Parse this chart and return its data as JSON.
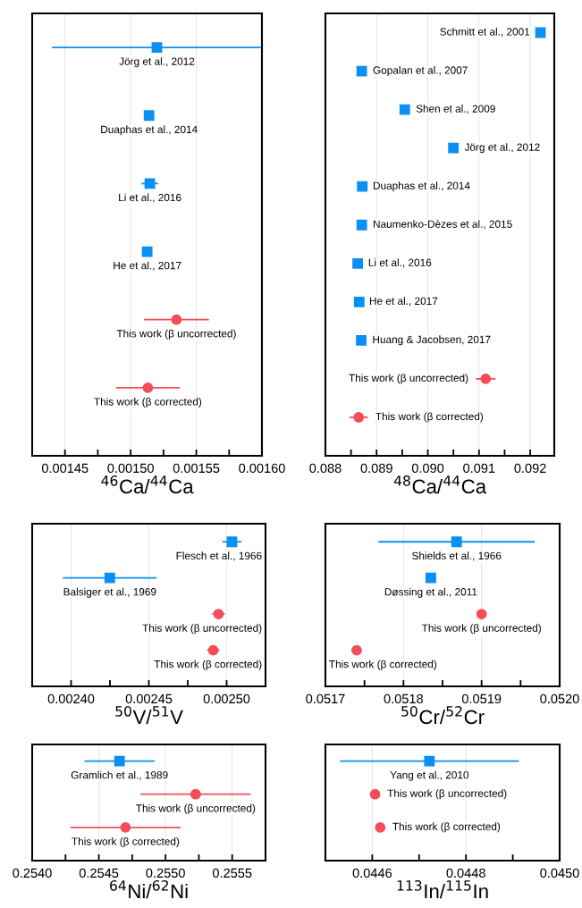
{
  "chart_data": [
    {
      "type": "scatter",
      "orientation": "horizontal",
      "tick_labels": "x",
      "grid": "x",
      "xlabel": "$^{46}$Ca/$^{44}$Ca",
      "categories": [
        "Jörg et al., 2012",
        "Duaphas et al., 2014",
        "Li et al., 2016",
        "He et al., 2017",
        "This work (β uncorrected)",
        "This work (β corrected)"
      ],
      "xlim": [
        0.001425,
        0.0016
      ],
      "xticks": [
        {
          "value": 0.00145,
          "label": "0.00145"
        },
        {
          "value": 0.001475,
          "label": null
        },
        {
          "value": 0.0015,
          "label": "0.00150"
        },
        {
          "value": 0.001525,
          "label": null
        },
        {
          "value": 0.00155,
          "label": "0.00155"
        },
        {
          "value": 0.001575,
          "label": null
        },
        {
          "value": 0.0016,
          "label": "0.00160"
        }
      ],
      "series": [
        {
          "color": "#0a8ff5",
          "marker": "square",
          "values": [
            0.00152,
            0.001514,
            0.0015146,
            0.0015126,
            null,
            null
          ],
          "errors": [
            [
              0.00144,
              0.0016
            ],
            2e-06,
            6.3e-06,
            2e-06,
            null,
            null
          ]
        },
        {
          "color": "#f44d5a",
          "marker": "circle",
          "values": [
            null,
            null,
            null,
            null,
            0.0015349,
            0.0015131
          ],
          "errors": [
            null,
            null,
            null,
            null,
            2.47e-05,
            2.43e-05
          ]
        }
      ]
    },
    {
      "type": "scatter",
      "orientation": "horizontal",
      "tick_labels": "x",
      "grid": "x",
      "xlabel": "$^{48}$Ca/$^{44}$Ca",
      "categories": [
        "Schmitt et al., 2001",
        "Gopalan et al., 2007",
        "Shen et al., 2009",
        "Jörg et al., 2012",
        "Duaphas et al., 2014",
        "Naumenko-Dèzes et al., 2015",
        "Li et al., 2016",
        "He et al., 2017",
        "Huang & Jacobsen, 2017",
        "This work (β uncorrected)",
        "This work (β corrected)"
      ],
      "xlim": [
        0.088,
        0.09247
      ],
      "xticks": [
        {
          "value": 0.088,
          "label": "0.088"
        },
        {
          "value": 0.0885,
          "label": null
        },
        {
          "value": 0.089,
          "label": "0.089"
        },
        {
          "value": 0.0895,
          "label": null
        },
        {
          "value": 0.09,
          "label": "0.090"
        },
        {
          "value": 0.0905,
          "label": null
        },
        {
          "value": 0.091,
          "label": "0.091"
        },
        {
          "value": 0.0915,
          "label": null
        },
        {
          "value": 0.092,
          "label": "0.092"
        }
      ],
      "series": [
        {
          "color": "#0a8ff5",
          "marker": "square",
          "values": [
            0.0922,
            0.08871,
            0.08955,
            0.0905,
            0.08872,
            0.08871,
            0.08863,
            0.08866,
            0.0887,
            null,
            null
          ],
          "errors": [
            6e-05,
            7e-05,
            7e-05,
            7e-05,
            6e-05,
            7e-05,
            6e-05,
            5e-05,
            7e-05,
            null,
            null
          ]
        },
        {
          "color": "#f44d5a",
          "marker": "circle",
          "values": [
            null,
            null,
            null,
            null,
            null,
            null,
            null,
            null,
            null,
            0.09113,
            0.08865
          ],
          "errors": [
            null,
            null,
            null,
            null,
            null,
            null,
            null,
            null,
            null,
            0.00019,
            0.00018
          ]
        }
      ]
    },
    {
      "type": "scatter",
      "orientation": "horizontal",
      "tick_labels": "x",
      "grid": "x",
      "xlabel": "$^{50}$V/$^{51}$V",
      "categories": [
        "Flesch et al., 1966",
        "Balsiger et al., 1969",
        "This work (β uncorrected)",
        "This work (β corrected)"
      ],
      "xlim": [
        0.002375,
        0.002525
      ],
      "xticks": [
        {
          "value": 0.0024,
          "label": "0.00240"
        },
        {
          "value": 0.002425,
          "label": null
        },
        {
          "value": 0.00245,
          "label": "0.00245"
        },
        {
          "value": 0.002475,
          "label": null
        },
        {
          "value": 0.0025,
          "label": "0.00250"
        }
      ],
      "series": [
        {
          "color": "#0a8ff5",
          "marker": "square",
          "values": [
            0.0025034,
            0.0024249,
            null,
            null
          ],
          "errors": [
            6.2e-06,
            3.02e-05,
            null,
            null
          ]
        },
        {
          "color": "#f44d5a",
          "marker": "circle",
          "values": [
            null,
            null,
            0.0024948,
            0.0024914
          ],
          "errors": [
            null,
            null,
            4e-06,
            4e-06
          ]
        }
      ]
    },
    {
      "type": "scatter",
      "orientation": "horizontal",
      "tick_labels": "x",
      "grid": "x",
      "xlabel": "$^{50}$Cr/$^{52}$Cr",
      "categories": [
        "Shields et al., 1966",
        "Døssing et al., 2011",
        "This work (β uncorrected)",
        "This work (β corrected)"
      ],
      "xlim": [
        0.0517,
        0.052
      ],
      "xticks": [
        {
          "value": 0.0517,
          "label": "0.0517"
        },
        {
          "value": 0.05175,
          "label": null
        },
        {
          "value": 0.0518,
          "label": "0.0518"
        },
        {
          "value": 0.05185,
          "label": null
        },
        {
          "value": 0.0519,
          "label": "0.0519"
        },
        {
          "value": 0.05195,
          "label": null
        },
        {
          "value": 0.052,
          "label": "0.0520"
        }
      ],
      "series": [
        {
          "color": "#0a8ff5",
          "marker": "square",
          "values": [
            0.051868,
            0.051835,
            null,
            null
          ],
          "errors": [
            0.0001,
            7e-06,
            null,
            null
          ]
        },
        {
          "color": "#f44d5a",
          "marker": "circle",
          "values": [
            null,
            null,
            0.0519,
            0.05174
          ],
          "errors": [
            null,
            null,
            5e-06,
            6e-06
          ]
        }
      ]
    },
    {
      "type": "scatter",
      "orientation": "horizontal",
      "tick_labels": "x",
      "grid": "x",
      "xlabel": "$^{64}$Ni/$^{62}$Ni",
      "categories": [
        "Gramlich et al., 1989",
        "This work (β uncorrected)",
        "This work (β corrected)"
      ],
      "xlim": [
        0.254,
        0.25575
      ],
      "xticks": [
        {
          "value": 0.254,
          "label": "0.2540"
        },
        {
          "value": 0.25425,
          "label": null
        },
        {
          "value": 0.2545,
          "label": "0.2545"
        },
        {
          "value": 0.25475,
          "label": null
        },
        {
          "value": 0.255,
          "label": "0.2550"
        },
        {
          "value": 0.25525,
          "label": null
        },
        {
          "value": 0.2555,
          "label": "0.2555"
        }
      ],
      "series": [
        {
          "color": "#0a8ff5",
          "marker": "square",
          "values": [
            0.254655,
            null,
            null
          ],
          "errors": [
            0.000263,
            null,
            null
          ]
        },
        {
          "color": "#f44d5a",
          "marker": "circle",
          "values": [
            null,
            0.255226,
            0.2547
          ],
          "errors": [
            null,
            0.000413,
            0.000413
          ]
        }
      ]
    },
    {
      "type": "scatter",
      "orientation": "horizontal",
      "tick_labels": "x",
      "grid": "x",
      "xlabel": "$^{113}$In/$^{115}$In",
      "categories": [
        "Yang et al., 2010",
        "This work (β uncorrected)",
        "This work (β corrected)"
      ],
      "xlim": [
        0.0445,
        0.045
      ],
      "xticks": [
        {
          "value": 0.0446,
          "label": "0.0446"
        },
        {
          "value": 0.0447,
          "label": null
        },
        {
          "value": 0.0448,
          "label": "0.0448"
        },
        {
          "value": 0.0449,
          "label": null
        },
        {
          "value": 0.045,
          "label": "0.0450"
        }
      ],
      "series": [
        {
          "color": "#0a8ff5",
          "marker": "square",
          "values": [
            0.044722,
            null,
            null
          ],
          "errors": [
            0.000191,
            null,
            null
          ]
        },
        {
          "color": "#f44d5a",
          "marker": "circle",
          "values": [
            null,
            0.044606,
            0.044617
          ],
          "errors": [
            null,
            1e-05,
            1e-05
          ]
        }
      ]
    }
  ]
}
